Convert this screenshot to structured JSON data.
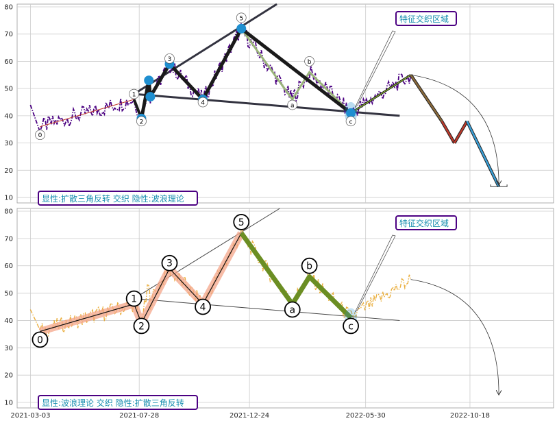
{
  "chart_data": [
    {
      "type": "line",
      "panel": "top",
      "annotation_box": "显性:扩散三角反转 交织 隐性:波浪理论",
      "callout_label": "特征交织区域",
      "y_ticks": [
        "10",
        "20",
        "30",
        "40",
        "50",
        "60",
        "70",
        "80"
      ],
      "ylim": [
        8,
        81
      ],
      "xlim": [
        "2021-02-13",
        "2023-02-08"
      ],
      "grid": true,
      "price_line_color": "#4b0082",
      "price_line_style": "dashdot",
      "wave_labels": [
        {
          "label": "0",
          "x": "2021-03-16",
          "y": 33
        },
        {
          "label": "1",
          "x": "2021-07-21",
          "y": 48
        },
        {
          "label": "2",
          "x": "2021-07-31",
          "y": 38
        },
        {
          "label": "3",
          "x": "2021-09-07",
          "y": 61
        },
        {
          "label": "4",
          "x": "2021-10-22",
          "y": 45
        },
        {
          "label": "5",
          "x": "2021-12-13",
          "y": 76
        },
        {
          "label": "a",
          "x": "2022-02-20",
          "y": 44
        },
        {
          "label": "b",
          "x": "2022-03-15",
          "y": 60
        },
        {
          "label": "c",
          "x": "2022-05-10",
          "y": 38
        }
      ],
      "impulse_points": [
        {
          "x": "2021-07-31",
          "y": 39
        },
        {
          "x": "2021-08-10",
          "y": 53
        },
        {
          "x": "2021-08-12",
          "y": 47
        },
        {
          "x": "2021-09-07",
          "y": 59
        },
        {
          "x": "2021-10-22",
          "y": 46
        },
        {
          "x": "2021-12-13",
          "y": 72
        },
        {
          "x": "2022-05-10",
          "y": 41
        }
      ],
      "projection_points": [
        {
          "x": "2022-07-30",
          "y": 55
        },
        {
          "x": "2022-09-10",
          "y": 38
        },
        {
          "x": "2022-09-27",
          "y": 30
        },
        {
          "x": "2022-10-14",
          "y": 38
        },
        {
          "x": "2022-11-26",
          "y": 14
        }
      ]
    },
    {
      "type": "line",
      "panel": "bottom",
      "annotation_box": "显性:波浪理论 交织 隐性:扩散三角反转",
      "callout_label": "特征交织区域",
      "y_ticks": [
        "10",
        "20",
        "30",
        "40",
        "50",
        "60",
        "70",
        "80"
      ],
      "x_ticks": [
        "2021-03-03",
        "2021-07-28",
        "2021-12-24",
        "2022-05-30",
        "2022-10-18"
      ],
      "ylim": [
        8,
        81
      ],
      "xlim": [
        "2021-02-13",
        "2023-02-08"
      ],
      "grid": true,
      "price_line_color": "#e8a62a",
      "price_line_style": "dashdot",
      "wave_labels": [
        {
          "label": "0",
          "x": "2021-03-16",
          "y": 33
        },
        {
          "label": "1",
          "x": "2021-07-21",
          "y": 48
        },
        {
          "label": "2",
          "x": "2021-07-31",
          "y": 38
        },
        {
          "label": "3",
          "x": "2021-09-07",
          "y": 61
        },
        {
          "label": "4",
          "x": "2021-10-22",
          "y": 45
        },
        {
          "label": "5",
          "x": "2021-12-13",
          "y": 76
        },
        {
          "label": "a",
          "x": "2022-02-20",
          "y": 44
        },
        {
          "label": "b",
          "x": "2022-03-15",
          "y": 60
        },
        {
          "label": "c",
          "x": "2022-05-10",
          "y": 38
        }
      ]
    }
  ],
  "colors": {
    "grid": "#cccccc",
    "box_border": "#4b0082",
    "label_text": "#1a8fb0",
    "wave_dark": "#1a1a1a",
    "corrective_green": "#6b8e23",
    "triangle_line": "#333340",
    "marker_blue": "#1f8fd0",
    "projection_red": "#c0392b",
    "projection_blue": "#3aa0d8",
    "impulse_shade": "#f4a58a"
  }
}
